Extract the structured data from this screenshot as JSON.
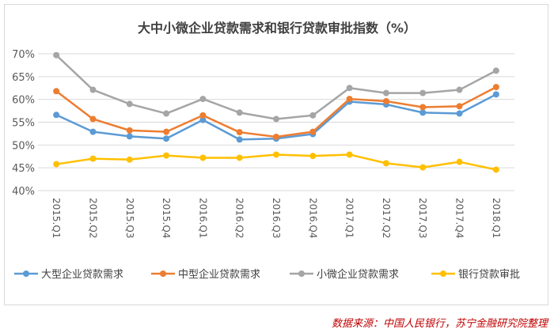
{
  "chart_data": {
    "type": "line",
    "title": "大中小微企业贷款需求和银行贷款审批指数（%）",
    "xlabel": "",
    "ylabel": "",
    "categories": [
      "2015.Q1",
      "2015.Q2",
      "2015.Q3",
      "2015.Q4",
      "2016.Q1",
      "2016.Q2",
      "2016.Q3",
      "2016.Q4",
      "2017.Q1",
      "2017.Q2",
      "2017.Q3",
      "2017.Q4",
      "2018.Q1"
    ],
    "ylim": [
      40,
      70
    ],
    "yticks": [
      "40%",
      "45%",
      "50%",
      "55%",
      "60%",
      "65%",
      "70%"
    ],
    "ytick_values": [
      40,
      45,
      50,
      55,
      60,
      65,
      70
    ],
    "grid": "horizontal",
    "legend_position": "bottom",
    "series": [
      {
        "name": "大型企业贷款需求",
        "color": "#5b9bd5",
        "values": [
          56.6,
          52.9,
          51.9,
          51.4,
          55.5,
          51.2,
          51.4,
          52.4,
          59.5,
          58.9,
          57.1,
          56.9,
          61.1
        ]
      },
      {
        "name": "中型企业贷款需求",
        "color": "#ed7d31",
        "values": [
          61.8,
          55.7,
          53.2,
          52.9,
          56.5,
          52.8,
          51.8,
          52.9,
          60.1,
          59.6,
          58.3,
          58.5,
          62.7
        ]
      },
      {
        "name": "小微企业贷款需求",
        "color": "#a5a5a5",
        "values": [
          69.7,
          62.1,
          59.0,
          56.9,
          60.1,
          57.1,
          55.7,
          56.5,
          62.5,
          61.4,
          61.4,
          62.1,
          66.3
        ]
      },
      {
        "name": "银行贷款审批",
        "color": "#ffc000",
        "values": [
          45.8,
          47.0,
          46.8,
          47.7,
          47.2,
          47.2,
          47.9,
          47.6,
          47.9,
          46.0,
          45.1,
          46.3,
          44.6
        ]
      }
    ]
  },
  "source": "数据来源：中国人民银行，苏宁金融研究院整理"
}
